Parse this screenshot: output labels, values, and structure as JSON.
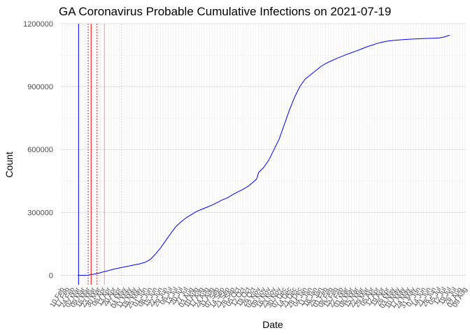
{
  "chart_data": {
    "type": "line",
    "title": "GA Coronavirus Probable Cumulative Infections on 2021-07-19",
    "xlabel": "Date",
    "ylabel": "Count",
    "ylim": [
      -45000,
      1200000
    ],
    "xlim": [
      "2020-02-07",
      "2021-08-10"
    ],
    "y_ticks": [
      0,
      300000,
      600000,
      900000,
      1200000
    ],
    "y_tick_labels": [
      "0",
      "300000",
      "600000",
      "900000",
      "1200000"
    ],
    "x_tick_start": "2020-02-10",
    "x_tick_step_days": 7,
    "x_tick_labels": [
      "10 Feb",
      "17 Feb",
      "24 Feb",
      "02 Mar",
      "09 Mar",
      "16 Mar",
      "23 Mar",
      "30 Mar",
      "06 Apr",
      "13 Apr",
      "20 Apr",
      "27 Apr",
      "04 May",
      "11 May",
      "18 May",
      "25 May",
      "01 Jun",
      "08 Jun",
      "15 Jun",
      "22 Jun",
      "29 Jun",
      "06 Jul",
      "13 Jul",
      "20 Jul",
      "27 Jul",
      "03 Aug",
      "10 Aug",
      "17 Aug",
      "24 Aug",
      "31 Aug",
      "07 Sep",
      "14 Sep",
      "21 Sep",
      "28 Sep",
      "05 Oct",
      "12 Oct",
      "19 Oct",
      "26 Oct",
      "02 Nov",
      "09 Nov",
      "16 Nov",
      "23 Nov",
      "30 Nov",
      "07 Dec",
      "14 Dec",
      "21 Dec",
      "28 Dec",
      "04 Jan",
      "11 Jan",
      "18 Jan",
      "25 Jan",
      "01 Feb",
      "08 Feb",
      "15 Feb",
      "22 Feb",
      "01 Mar",
      "08 Mar",
      "15 Mar",
      "22 Mar",
      "29 Mar",
      "05 Apr",
      "12 Apr",
      "19 Apr",
      "26 Apr",
      "03 May",
      "10 May",
      "17 May",
      "24 May",
      "31 May",
      "07 Jun",
      "14 Jun",
      "21 Jun",
      "28 Jun",
      "05 Jul",
      "12 Jul",
      "19 Jul",
      "26 Jul",
      "02 Aug",
      "09 Aug"
    ],
    "grid": true,
    "series": [
      {
        "color": "#0000ff",
        "x": [
          "2020-03-02",
          "2020-03-09",
          "2020-03-16",
          "2020-03-23",
          "2020-03-30",
          "2020-04-06",
          "2020-04-13",
          "2020-04-20",
          "2020-04-27",
          "2020-05-04",
          "2020-05-11",
          "2020-05-18",
          "2020-05-25",
          "2020-06-01",
          "2020-06-08",
          "2020-06-15",
          "2020-06-22",
          "2020-06-29",
          "2020-07-06",
          "2020-07-13",
          "2020-07-20",
          "2020-07-27",
          "2020-08-03",
          "2020-08-10",
          "2020-08-17",
          "2020-08-24",
          "2020-08-31",
          "2020-09-07",
          "2020-09-14",
          "2020-09-21",
          "2020-09-28",
          "2020-10-05",
          "2020-10-12",
          "2020-10-19",
          "2020-10-26",
          "2020-11-01",
          "2020-11-02",
          "2020-11-09",
          "2020-11-16",
          "2020-11-23",
          "2020-11-30",
          "2020-12-07",
          "2020-12-14",
          "2020-12-21",
          "2020-12-28",
          "2021-01-04",
          "2021-01-11",
          "2021-01-18",
          "2021-01-25",
          "2021-02-01",
          "2021-02-08",
          "2021-02-15",
          "2021-02-22",
          "2021-03-01",
          "2021-03-08",
          "2021-03-15",
          "2021-03-22",
          "2021-03-29",
          "2021-04-05",
          "2021-04-12",
          "2021-04-19",
          "2021-04-26",
          "2021-05-03",
          "2021-05-10",
          "2021-05-17",
          "2021-05-24",
          "2021-05-31",
          "2021-06-07",
          "2021-06-14",
          "2021-06-21",
          "2021-06-28",
          "2021-07-05",
          "2021-07-12",
          "2021-07-19"
        ],
        "y": [
          0,
          0,
          1000,
          5000,
          10000,
          17000,
          23000,
          30000,
          35000,
          40000,
          45000,
          50000,
          55000,
          62000,
          75000,
          100000,
          130000,
          165000,
          200000,
          233000,
          255000,
          275000,
          290000,
          305000,
          315000,
          325000,
          335000,
          347000,
          360000,
          370000,
          385000,
          398000,
          410000,
          425000,
          445000,
          465000,
          490000,
          515000,
          550000,
          600000,
          650000,
          720000,
          790000,
          850000,
          900000,
          935000,
          955000,
          975000,
          995000,
          1010000,
          1022000,
          1033000,
          1043000,
          1053000,
          1062000,
          1071000,
          1080000,
          1090000,
          1098000,
          1106000,
          1112000,
          1117000,
          1120000,
          1122000,
          1124000,
          1126000,
          1127000,
          1128000,
          1129000,
          1130000,
          1131000,
          1132000,
          1137000,
          1145000
        ],
        "x_full": [
          "2020-03-02",
          "2020-03-09",
          "2020-03-16",
          "2020-03-23",
          "2020-03-30",
          "2020-04-06",
          "2020-04-13",
          "2020-04-20",
          "2020-04-27",
          "2020-05-04",
          "2020-05-11",
          "2020-05-18",
          "2020-05-25",
          "2020-06-01",
          "2020-06-08",
          "2020-06-15",
          "2020-06-22",
          "2020-06-29",
          "2020-07-06",
          "2020-07-13",
          "2020-07-20",
          "2020-07-27",
          "2020-08-03",
          "2020-08-10",
          "2020-08-17",
          "2020-08-24",
          "2020-08-31",
          "2020-09-07",
          "2020-09-14",
          "2020-09-21",
          "2020-09-28",
          "2020-10-05",
          "2020-10-12",
          "2020-10-19",
          "2020-10-26",
          "2020-10-30",
          "2020-10-31",
          "2020-11-02",
          "2020-11-09",
          "2020-11-16",
          "2020-11-23",
          "2020-11-30",
          "2020-12-07",
          "2020-12-14",
          "2020-12-21",
          "2020-12-28",
          "2021-01-04",
          "2021-01-11",
          "2021-01-18",
          "2021-01-25",
          "2021-02-01",
          "2021-02-08",
          "2021-02-15",
          "2021-02-22",
          "2021-03-01",
          "2021-03-08",
          "2021-03-15",
          "2021-03-22",
          "2021-03-29",
          "2021-04-05",
          "2021-04-12",
          "2021-04-19",
          "2021-04-26",
          "2021-05-03",
          "2021-05-10",
          "2021-05-17",
          "2021-05-24",
          "2021-05-31",
          "2021-06-07",
          "2021-06-14",
          "2021-06-21",
          "2021-06-28",
          "2021-07-05",
          "2021-07-12",
          "2021-07-19"
        ],
        "y_full": [
          0,
          0,
          1000,
          5000,
          10000,
          17000,
          23000,
          30000,
          35000,
          40000,
          45000,
          50000,
          55000,
          62000,
          75000,
          100000,
          130000,
          165000,
          200000,
          233000,
          255000,
          275000,
          290000,
          305000,
          315000,
          325000,
          335000,
          347000,
          360000,
          370000,
          385000,
          398000,
          410000,
          425000,
          445000,
          458000,
          465000,
          490000,
          515000,
          550000,
          600000,
          650000,
          720000,
          790000,
          850000,
          900000,
          935000,
          955000,
          975000,
          995000,
          1010000,
          1022000,
          1033000,
          1043000,
          1053000,
          1062000,
          1071000,
          1080000,
          1090000,
          1098000,
          1106000,
          1112000,
          1117000,
          1120000,
          1122000,
          1124000,
          1126000,
          1127000,
          1128000,
          1129000,
          1130000,
          1131000,
          1132000,
          1137000,
          1145000
        ]
      }
    ],
    "reference_lines": [
      {
        "x": "2020-03-03",
        "color": "#0000ff",
        "style": "solid"
      },
      {
        "x": "2020-03-16",
        "color": "#8b0000",
        "style": "dotted"
      },
      {
        "x": "2020-03-20",
        "color": "#ff0000",
        "style": "solid"
      },
      {
        "x": "2020-03-28",
        "color": "#8b0000",
        "style": "dotted"
      },
      {
        "x": "2020-04-07",
        "color": "#ff9999",
        "style": "solid"
      },
      {
        "x": "2020-04-30",
        "color": "#cccccc",
        "style": "dotted"
      }
    ]
  }
}
